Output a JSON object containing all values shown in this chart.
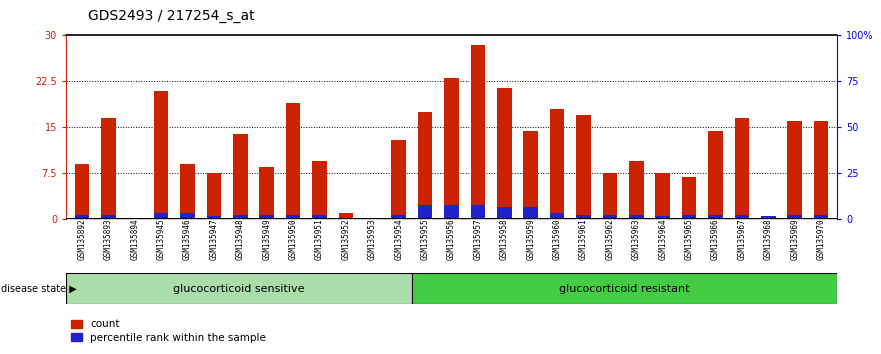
{
  "title": "GDS2493 / 217254_s_at",
  "samples": [
    "GSM135892",
    "GSM135893",
    "GSM135894",
    "GSM135945",
    "GSM135946",
    "GSM135947",
    "GSM135948",
    "GSM135949",
    "GSM135950",
    "GSM135951",
    "GSM135952",
    "GSM135953",
    "GSM135954",
    "GSM135955",
    "GSM135956",
    "GSM135957",
    "GSM135958",
    "GSM135959",
    "GSM135960",
    "GSM135961",
    "GSM135962",
    "GSM135963",
    "GSM135964",
    "GSM135965",
    "GSM135966",
    "GSM135967",
    "GSM135968",
    "GSM135969",
    "GSM135970"
  ],
  "count_values": [
    9.0,
    16.5,
    0.3,
    21.0,
    9.0,
    7.5,
    14.0,
    8.5,
    19.0,
    9.5,
    1.0,
    0.3,
    13.0,
    17.5,
    23.0,
    28.5,
    21.5,
    14.5,
    18.0,
    17.0,
    7.5,
    9.5,
    7.5,
    7.0,
    14.5,
    16.5,
    0.3,
    16.0,
    16.0
  ],
  "percentile_values_raw": [
    0.8,
    0.8,
    0.3,
    1.0,
    1.0,
    0.5,
    0.8,
    0.7,
    0.8,
    0.7,
    0.3,
    0.3,
    0.8,
    2.3,
    2.3,
    2.3,
    2.0,
    2.0,
    1.0,
    0.8,
    0.8,
    0.8,
    0.5,
    0.7,
    0.8,
    0.8,
    0.5,
    0.8,
    0.7
  ],
  "sensitive_count": 13,
  "resistant_count": 16,
  "ylim": [
    0,
    30
  ],
  "yticks": [
    0,
    7.5,
    15,
    22.5,
    30
  ],
  "ytick_labels": [
    "0",
    "7.5",
    "15",
    "22.5",
    "30"
  ],
  "right_ytick_labels": [
    "0",
    "25",
    "50",
    "75",
    "100%"
  ],
  "bar_color_red": "#cc2200",
  "bar_color_blue": "#2222cc",
  "plot_bg": "#ffffff",
  "xticklabel_bg": "#d0d0d0",
  "sensitive_fill": "#aaddaa",
  "resistant_fill": "#44cc44",
  "title_fontsize": 10,
  "tick_fontsize": 7,
  "label_fontsize": 8,
  "legend_fontsize": 7.5
}
